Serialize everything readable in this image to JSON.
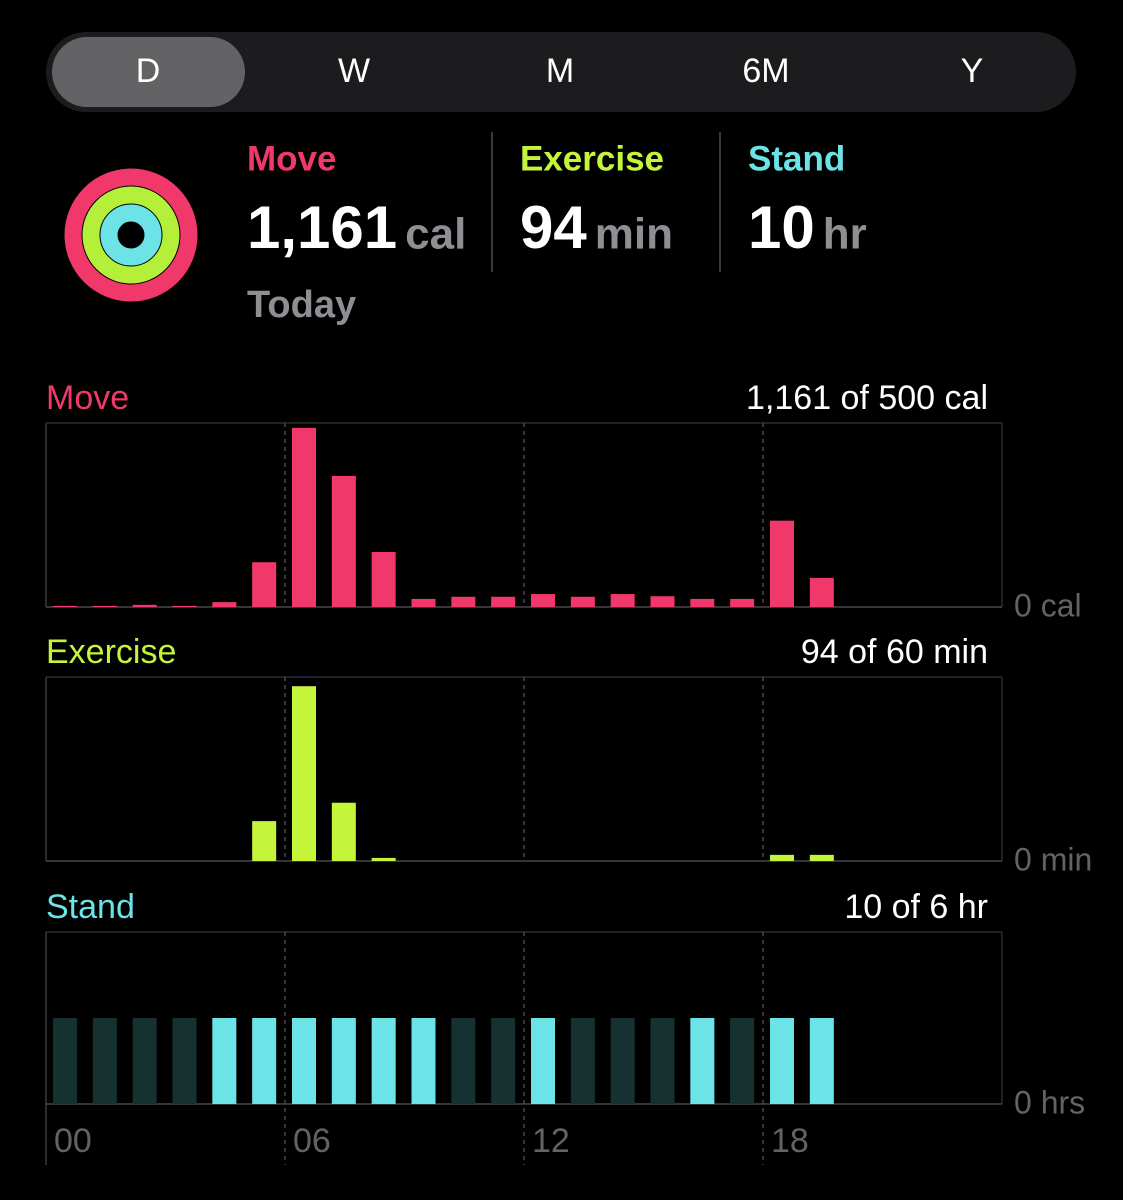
{
  "segments": [
    "D",
    "W",
    "M",
    "6M",
    "Y"
  ],
  "selected_segment": "D",
  "summary": {
    "rings": [
      {
        "title": "Move",
        "value": "1,161",
        "unit": "cal",
        "color": "#f0386b"
      },
      {
        "title": "Exercise",
        "value": "94",
        "unit": "min",
        "color": "#c5f53b"
      },
      {
        "title": "Stand",
        "value": "10",
        "unit": "hr",
        "color": "#6ce3e6"
      }
    ],
    "period": "Today"
  },
  "chart_data": [
    {
      "type": "bar",
      "title": "Move",
      "subtitle": "1,161 of 500 cal",
      "color": "#f0386b",
      "categories": [
        "00",
        null,
        null,
        null,
        null,
        null,
        "06",
        null,
        null,
        null,
        null,
        null,
        "12",
        null,
        null,
        null,
        null,
        null,
        "18",
        null,
        null,
        null,
        null,
        null
      ],
      "values": [
        2,
        2,
        4,
        2,
        9,
        83,
        332,
        243,
        102,
        15,
        19,
        19,
        24,
        19,
        24,
        20,
        15,
        15,
        160,
        54,
        null,
        null,
        null,
        null
      ],
      "ylim": [
        0,
        341
      ],
      "yticks": [
        {
          "value": 0,
          "label": "0 cal"
        }
      ]
    },
    {
      "type": "bar",
      "title": "Exercise",
      "subtitle": "94 of 60 min",
      "color": "#c5f53b",
      "categories": [
        "00",
        null,
        null,
        null,
        null,
        null,
        "06",
        null,
        null,
        null,
        null,
        null,
        "12",
        null,
        null,
        null,
        null,
        null,
        "18",
        null,
        null,
        null,
        null,
        null
      ],
      "values": [
        0,
        0,
        0,
        0,
        0,
        13,
        57,
        19,
        1,
        0,
        0,
        0,
        0,
        0,
        0,
        0,
        0,
        0,
        2,
        2,
        null,
        null,
        null,
        null
      ],
      "ylim": [
        0,
        60
      ],
      "yticks": [
        {
          "value": 0,
          "label": "0 min"
        }
      ]
    },
    {
      "type": "bar",
      "title": "Stand",
      "subtitle": "10 of 6 hr",
      "color": "#6ce3e6",
      "track_color": "#163230",
      "categories": [
        "00",
        null,
        null,
        null,
        null,
        null,
        "06",
        null,
        null,
        null,
        null,
        null,
        "12",
        null,
        null,
        null,
        null,
        null,
        "18",
        null,
        null,
        null,
        null,
        null
      ],
      "values": [
        0,
        0,
        0,
        0,
        1,
        1,
        1,
        1,
        1,
        1,
        0,
        0,
        1,
        0,
        0,
        0,
        1,
        0,
        1,
        1,
        null,
        null,
        null,
        null
      ],
      "ylim": [
        0,
        2
      ],
      "yticks": [
        {
          "value": 0,
          "label": "0 hrs"
        }
      ]
    }
  ]
}
